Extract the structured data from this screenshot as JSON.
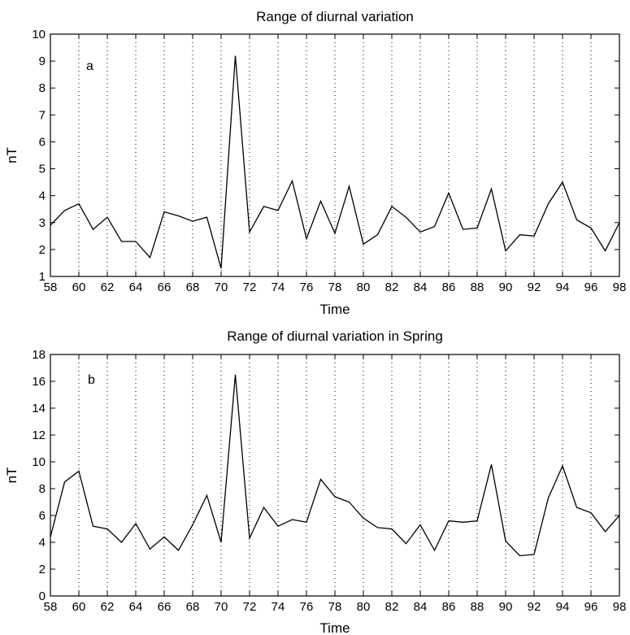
{
  "chart_data": [
    {
      "type": "line",
      "title": "Range of diurnal variation",
      "panel_label": "a",
      "xlabel": "Time",
      "ylabel": "nT",
      "xlim": [
        58,
        98
      ],
      "ylim": [
        1,
        10
      ],
      "xticks": [
        58,
        60,
        62,
        64,
        66,
        68,
        70,
        72,
        74,
        76,
        78,
        80,
        82,
        84,
        86,
        88,
        90,
        92,
        94,
        96,
        98
      ],
      "yticks": [
        1,
        2,
        3,
        4,
        5,
        6,
        7,
        8,
        9,
        10
      ],
      "grid": "vertical dotted",
      "x": [
        58,
        59,
        60,
        61,
        62,
        63,
        64,
        65,
        66,
        67,
        68,
        69,
        70,
        71,
        72,
        73,
        74,
        75,
        76,
        77,
        78,
        79,
        80,
        81,
        82,
        83,
        84,
        85,
        86,
        87,
        88,
        89,
        90,
        91,
        92,
        93,
        94,
        95,
        96,
        97,
        98
      ],
      "values": [
        2.9,
        3.45,
        3.7,
        2.75,
        3.2,
        2.3,
        2.3,
        1.7,
        3.4,
        3.25,
        3.05,
        3.2,
        1.3,
        9.2,
        2.65,
        3.6,
        3.45,
        4.55,
        2.4,
        3.8,
        2.6,
        4.35,
        2.2,
        2.55,
        3.6,
        3.2,
        2.65,
        2.85,
        4.1,
        2.75,
        2.8,
        4.25,
        1.95,
        2.55,
        2.5,
        3.7,
        4.5,
        3.1,
        2.8,
        1.95,
        3.0
      ]
    },
    {
      "type": "line",
      "title": "Range of diurnal variation in Spring",
      "panel_label": "b",
      "xlabel": "Time",
      "ylabel": "nT",
      "xlim": [
        58,
        98
      ],
      "ylim": [
        0,
        18
      ],
      "xticks": [
        58,
        60,
        62,
        64,
        66,
        68,
        70,
        72,
        74,
        76,
        78,
        80,
        82,
        84,
        86,
        88,
        90,
        92,
        94,
        96,
        98
      ],
      "yticks": [
        0,
        2,
        4,
        6,
        8,
        10,
        12,
        14,
        16,
        18
      ],
      "grid": "vertical dotted",
      "x": [
        58,
        59,
        60,
        61,
        62,
        63,
        64,
        65,
        66,
        67,
        68,
        69,
        70,
        71,
        72,
        73,
        74,
        75,
        76,
        77,
        78,
        79,
        80,
        81,
        82,
        83,
        84,
        85,
        86,
        87,
        88,
        89,
        90,
        91,
        92,
        93,
        94,
        95,
        96,
        97,
        98
      ],
      "values": [
        4.4,
        8.5,
        9.3,
        5.2,
        5.0,
        4.0,
        5.4,
        3.5,
        4.4,
        3.4,
        5.3,
        7.5,
        4.0,
        16.5,
        4.3,
        6.6,
        5.2,
        5.7,
        5.5,
        8.7,
        7.4,
        7.0,
        5.8,
        5.1,
        5.0,
        3.9,
        5.3,
        3.4,
        5.6,
        5.5,
        5.6,
        9.8,
        4.1,
        3.0,
        3.1,
        7.3,
        9.7,
        6.6,
        6.2,
        4.8,
        6.0
      ]
    }
  ]
}
